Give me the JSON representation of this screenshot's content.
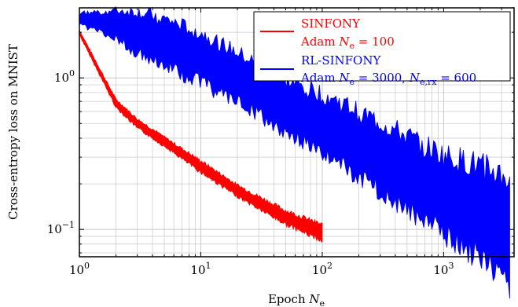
{
  "chart_data": {
    "type": "line",
    "x_scale": "log",
    "y_scale": "log",
    "xlim": [
      1,
      3800
    ],
    "ylim": [
      0.066,
      2.9
    ],
    "grid": true,
    "legend_placement": "top-right",
    "xlabel": "Epoch N_e",
    "xlabel_main": "Epoch ",
    "xlabel_var": "N",
    "xlabel_sub": "e",
    "ylabel": "Cross-entropy  loss on MNIST",
    "x_ticks": [
      {
        "base": "10",
        "exp": "0",
        "value": 1
      },
      {
        "base": "10",
        "exp": "1",
        "value": 10
      },
      {
        "base": "10",
        "exp": "2",
        "value": 100
      },
      {
        "base": "10",
        "exp": "3",
        "value": 1000
      }
    ],
    "y_ticks": [
      {
        "base": "10",
        "exp": "0",
        "value": 1
      },
      {
        "base": "10",
        "exp": "−1",
        "value": 0.1
      }
    ],
    "series": [
      {
        "name": "SINFONY",
        "detail": "Adam N_e = 100",
        "detail_parts": {
          "pre": "Adam ",
          "var": "N",
          "sub": "e",
          "post": " = 100"
        },
        "color": "#ff0000",
        "x": [
          1,
          2,
          3,
          5,
          10,
          20,
          50,
          100
        ],
        "values": [
          2.0,
          0.68,
          0.5,
          0.38,
          0.26,
          0.18,
          0.12,
          0.095
        ],
        "band_width": [
          0.02,
          0.035,
          0.04,
          0.04,
          0.05,
          0.05,
          0.06,
          0.07
        ]
      },
      {
        "name": "RL-SINFONY",
        "detail": "Adam N_e = 3000, N_e,rx = 600",
        "detail_parts": {
          "pre": "Adam ",
          "var": "N",
          "sub": "e",
          "mid": " = 3000, ",
          "var2": "N",
          "sub2": "e,rx",
          "post": " = 600"
        },
        "color": "#0000ff",
        "x": [
          1,
          2,
          3,
          5,
          10,
          20,
          50,
          100,
          300,
          1000,
          2000,
          3000,
          3500
        ],
        "values": [
          2.45,
          2.25,
          2.0,
          1.72,
          1.35,
          1.0,
          0.65,
          0.5,
          0.3,
          0.17,
          0.13,
          0.105,
          0.09
        ],
        "band_width": [
          0.05,
          0.12,
          0.18,
          0.2,
          0.22,
          0.22,
          0.22,
          0.26,
          0.3,
          0.34,
          0.4,
          0.45,
          0.5
        ]
      }
    ]
  }
}
